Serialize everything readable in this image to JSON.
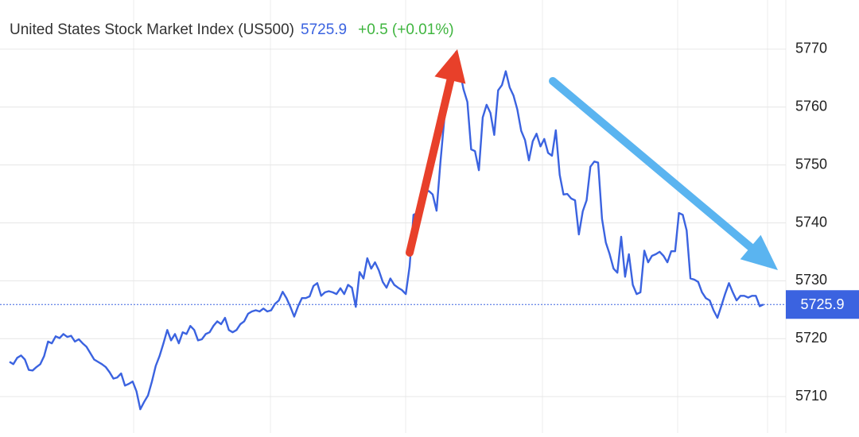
{
  "chart_data": {
    "type": "line",
    "title": "United States Stock Market Index (US500)",
    "price": 5725.9,
    "change": "+0.5 (+0.01%)",
    "color": "#3b63e0",
    "price_color": "#3b63e0",
    "change_color": "#3fb53f",
    "ylim": [
      5703.7,
      5778.5
    ],
    "yticks": [
      5710,
      5720,
      5730,
      5740,
      5750,
      5760,
      5770
    ],
    "grid": true,
    "values": [
      5716.0,
      5715.6,
      5716.7,
      5717.1,
      5716.4,
      5714.6,
      5714.5,
      5715.1,
      5715.6,
      5717.0,
      5719.5,
      5719.2,
      5720.4,
      5720.1,
      5720.8,
      5720.3,
      5720.5,
      5719.5,
      5719.9,
      5719.2,
      5718.6,
      5717.5,
      5716.4,
      5716.0,
      5715.6,
      5715.1,
      5714.2,
      5713.1,
      5713.3,
      5714.0,
      5711.9,
      5712.2,
      5712.6,
      5710.9,
      5707.8,
      5709.1,
      5710.2,
      5712.6,
      5715.3,
      5717.0,
      5719.2,
      5721.5,
      5719.7,
      5720.8,
      5719.2,
      5721.1,
      5720.8,
      5722.2,
      5721.5,
      5719.7,
      5719.9,
      5720.8,
      5721.1,
      5722.2,
      5723.0,
      5722.5,
      5723.6,
      5721.5,
      5721.1,
      5721.5,
      5722.5,
      5723.0,
      5724.3,
      5724.7,
      5724.9,
      5724.7,
      5725.2,
      5724.7,
      5724.9,
      5726.0,
      5726.6,
      5728.1,
      5727.0,
      5725.5,
      5723.8,
      5725.6,
      5727.0,
      5727.0,
      5727.3,
      5729.1,
      5729.6,
      5727.4,
      5728.0,
      5728.2,
      5728.0,
      5727.7,
      5728.7,
      5727.7,
      5729.3,
      5728.8,
      5725.5,
      5731.5,
      5730.4,
      5733.9,
      5732.1,
      5733.2,
      5731.8,
      5729.8,
      5728.8,
      5730.4,
      5729.3,
      5728.8,
      5728.4,
      5727.7,
      5732.5,
      5741.4,
      5741.7,
      5743.1,
      5745.3,
      5745.5,
      5744.9,
      5742.1,
      5750.4,
      5757.9,
      5761.3,
      5764.2,
      5769.5,
      5766.4,
      5763.1,
      5760.9,
      5752.7,
      5752.4,
      5749.1,
      5758.2,
      5760.4,
      5759.0,
      5755.2,
      5762.9,
      5763.8,
      5766.2,
      5763.4,
      5762.0,
      5759.6,
      5755.9,
      5754.3,
      5750.8,
      5754.1,
      5755.4,
      5753.2,
      5754.5,
      5752.1,
      5751.6,
      5756.0,
      5748.3,
      5744.9,
      5745.0,
      5744.2,
      5743.9,
      5738.0,
      5742.0,
      5743.9,
      5749.7,
      5750.6,
      5750.4,
      5740.7,
      5736.6,
      5734.6,
      5732.1,
      5731.4,
      5737.6,
      5730.7,
      5734.6,
      5729.3,
      5727.7,
      5728.0,
      5735.2,
      5733.2,
      5734.3,
      5734.6,
      5735.0,
      5734.3,
      5733.2,
      5735.1,
      5735.1,
      5741.7,
      5741.4,
      5738.7,
      5730.4,
      5730.2,
      5729.8,
      5728.0,
      5727.0,
      5726.6,
      5724.9,
      5723.6,
      5725.6,
      5727.7,
      5729.6,
      5728.0,
      5726.6,
      5727.4,
      5727.4,
      5727.1,
      5727.4,
      5727.4,
      5725.6,
      5725.9
    ]
  }
}
